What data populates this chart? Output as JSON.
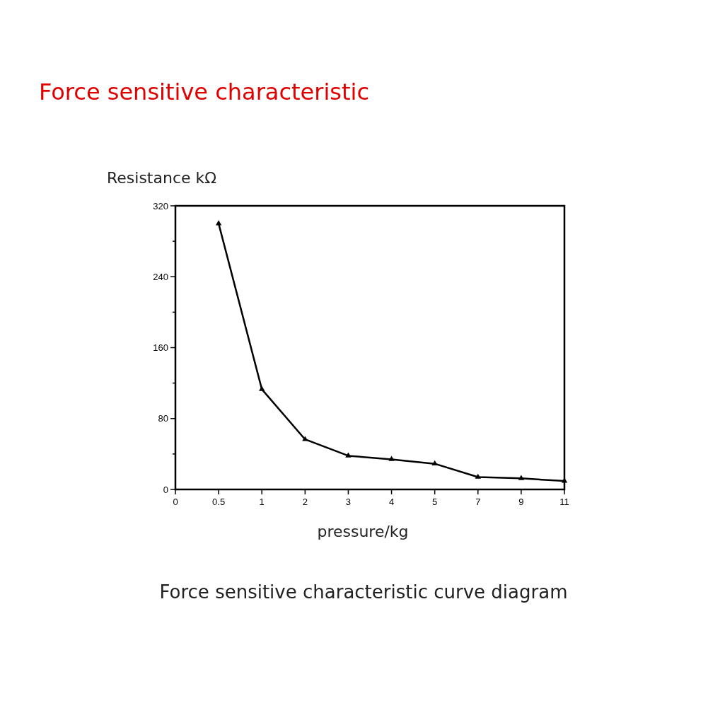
{
  "chart_data": {
    "type": "line",
    "title": "Force sensitive characteristic",
    "xlabel": "pressure/kg",
    "ylabel": "Resistance kΩ",
    "annotations": [
      "Force sensitive characteristic curve diagram"
    ],
    "categories": [
      "0",
      "0.5",
      "1",
      "2",
      "3",
      "4",
      "5",
      "7",
      "9",
      "11"
    ],
    "series": [
      {
        "color": "#000000",
        "values": [
          null,
          300,
          113,
          56.5,
          38,
          34,
          29,
          14,
          12.5,
          9.5
        ]
      }
    ],
    "ylim": [
      0,
      320
    ],
    "yticks": [
      0,
      {
        "value": 40,
        "label": null
      },
      80,
      {
        "value": 120,
        "label": null
      },
      160,
      {
        "value": 200,
        "label": null
      },
      240,
      {
        "value": 280,
        "label": null
      },
      320
    ],
    "grid": false,
    "marker": "triangle",
    "line_style": "solid"
  }
}
